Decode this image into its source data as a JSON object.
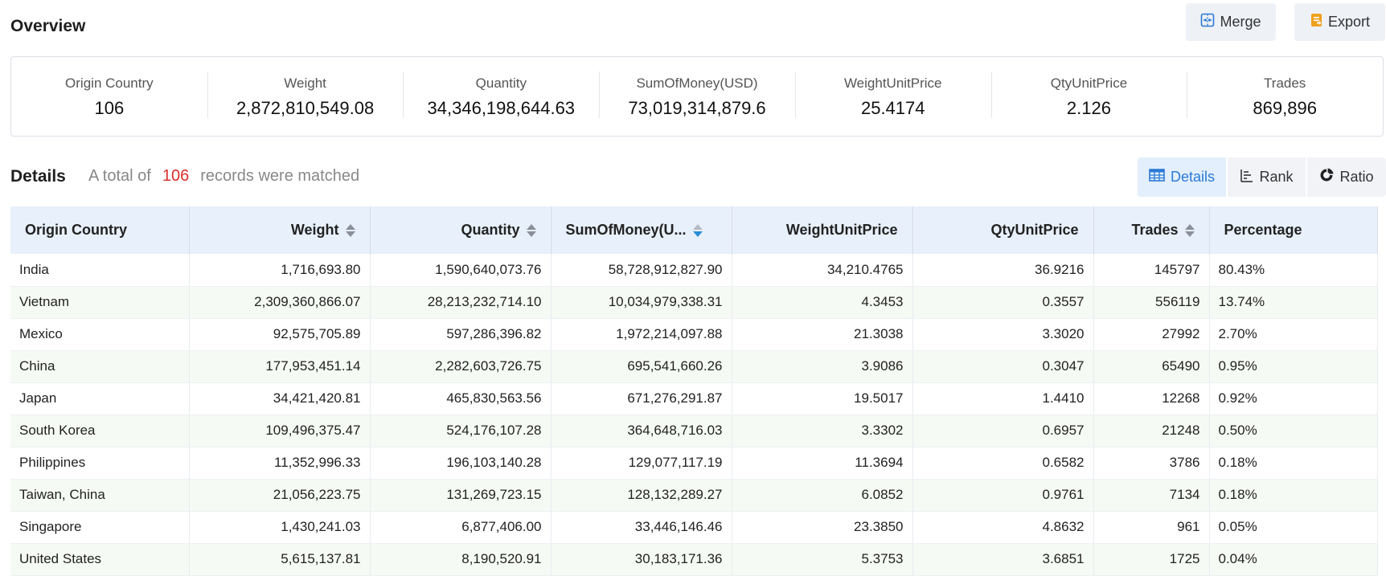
{
  "header": {
    "title": "Overview",
    "merge_label": "Merge",
    "export_label": "Export"
  },
  "summary": [
    {
      "label": "Origin Country",
      "value": "106"
    },
    {
      "label": "Weight",
      "value": "2,872,810,549.08"
    },
    {
      "label": "Quantity",
      "value": "34,346,198,644.63"
    },
    {
      "label": "SumOfMoney(USD)",
      "value": "73,019,314,879.6"
    },
    {
      "label": "WeightUnitPrice",
      "value": "25.4174"
    },
    {
      "label": "QtyUnitPrice",
      "value": "2.126"
    },
    {
      "label": "Trades",
      "value": "869,896"
    }
  ],
  "details": {
    "title": "Details",
    "records_prefix": "A total of",
    "records_count": "106",
    "records_suffix": "records were matched"
  },
  "view_switch": {
    "details_label": "Details",
    "rank_label": "Rank",
    "ratio_label": "Ratio",
    "active": "Details"
  },
  "table": {
    "columns": [
      "Origin Country",
      "Weight",
      "Quantity",
      "SumOfMoney(U...",
      "WeightUnitPrice",
      "QtyUnitPrice",
      "Trades",
      "Percentage"
    ],
    "sortable": [
      false,
      true,
      true,
      true,
      false,
      false,
      true,
      false
    ],
    "active_sort": {
      "column": "SumOfMoney(U...",
      "direction": "descending"
    },
    "rows": [
      [
        "India",
        "1,716,693.80",
        "1,590,640,073.76",
        "58,728,912,827.90",
        "34,210.4765",
        "36.9216",
        "145797",
        "80.43%"
      ],
      [
        "Vietnam",
        "2,309,360,866.07",
        "28,213,232,714.10",
        "10,034,979,338.31",
        "4.3453",
        "0.3557",
        "556119",
        "13.74%"
      ],
      [
        "Mexico",
        "92,575,705.89",
        "597,286,396.82",
        "1,972,214,097.88",
        "21.3038",
        "3.3020",
        "27992",
        "2.70%"
      ],
      [
        "China",
        "177,953,451.14",
        "2,282,603,726.75",
        "695,541,660.26",
        "3.9086",
        "0.3047",
        "65490",
        "0.95%"
      ],
      [
        "Japan",
        "34,421,420.81",
        "465,830,563.56",
        "671,276,291.87",
        "19.5017",
        "1.4410",
        "12268",
        "0.92%"
      ],
      [
        "South Korea",
        "109,496,375.47",
        "524,176,107.28",
        "364,648,716.03",
        "3.3302",
        "0.6957",
        "21248",
        "0.50%"
      ],
      [
        "Philippines",
        "11,352,996.33",
        "196,103,140.28",
        "129,077,117.19",
        "11.3694",
        "0.6582",
        "3786",
        "0.18%"
      ],
      [
        "Taiwan, China",
        "21,056,223.75",
        "131,269,723.15",
        "128,132,289.27",
        "6.0852",
        "0.9761",
        "7134",
        "0.18%"
      ],
      [
        "Singapore",
        "1,430,241.03",
        "6,877,406.00",
        "33,446,146.46",
        "23.3850",
        "4.8632",
        "961",
        "0.05%"
      ],
      [
        "United States",
        "5,615,137.81",
        "8,190,520.91",
        "30,183,171.36",
        "5.3753",
        "3.6851",
        "1725",
        "0.04%"
      ]
    ]
  },
  "colors": {
    "accent": "#2a7ad6",
    "count_red": "#d9302c",
    "header_bg": "#e8f0fb",
    "row_alt_bg": "#f6faf4",
    "export_icon": "#f0a020"
  },
  "icons": {
    "merge": "merge-icon",
    "export": "export-icon",
    "details": "table-icon",
    "rank": "rank-bars-icon",
    "ratio": "pie-ratio-icon",
    "sort": "sort-caret-icon"
  }
}
